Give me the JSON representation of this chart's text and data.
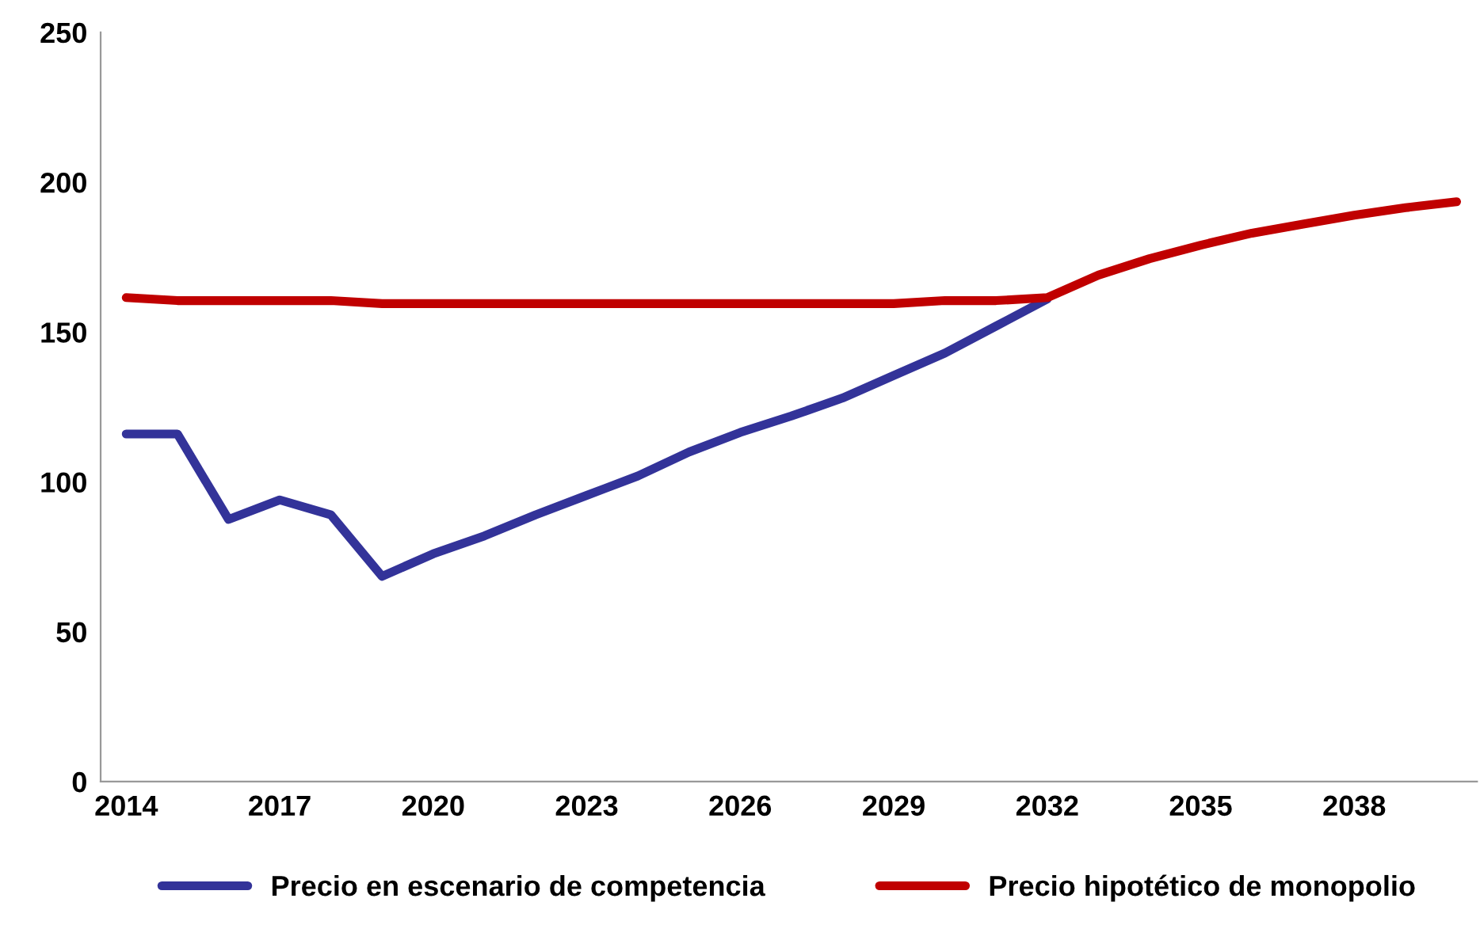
{
  "chart_data": {
    "type": "line",
    "categories": [
      "2014",
      null,
      null,
      "2017",
      null,
      null,
      "2020",
      null,
      null,
      "2023",
      null,
      null,
      "2026",
      null,
      null,
      "2029",
      null,
      null,
      "2032",
      null,
      null,
      "2035",
      null,
      null,
      "2038",
      null,
      null
    ],
    "series": [
      {
        "name": "Precio en escenario de competencia",
        "color": "#333399",
        "values": [
          116,
          116,
          87.5,
          94,
          89,
          68.5,
          76,
          82,
          89,
          95.5,
          102,
          110,
          116.5,
          122,
          128,
          135.5,
          143,
          152,
          161,
          null,
          null,
          null,
          null,
          null,
          null,
          null,
          null
        ]
      },
      {
        "name": "Precio hipotético de monopolio",
        "color": "#c00000",
        "values": [
          161.5,
          160.5,
          160.5,
          160.5,
          160.5,
          159.5,
          159.5,
          159.5,
          159.5,
          159.5,
          159.5,
          159.5,
          159.5,
          159.5,
          159.5,
          159.5,
          160.5,
          160.5,
          161.5,
          169,
          174.5,
          179,
          183,
          186,
          189,
          191.5,
          193.5
        ]
      }
    ],
    "ylim": [
      0,
      250
    ],
    "yticks": [
      0,
      50,
      100,
      150,
      200,
      250
    ],
    "legend": "bottom",
    "grid": false,
    "marker": "none",
    "line_style": "solid"
  }
}
